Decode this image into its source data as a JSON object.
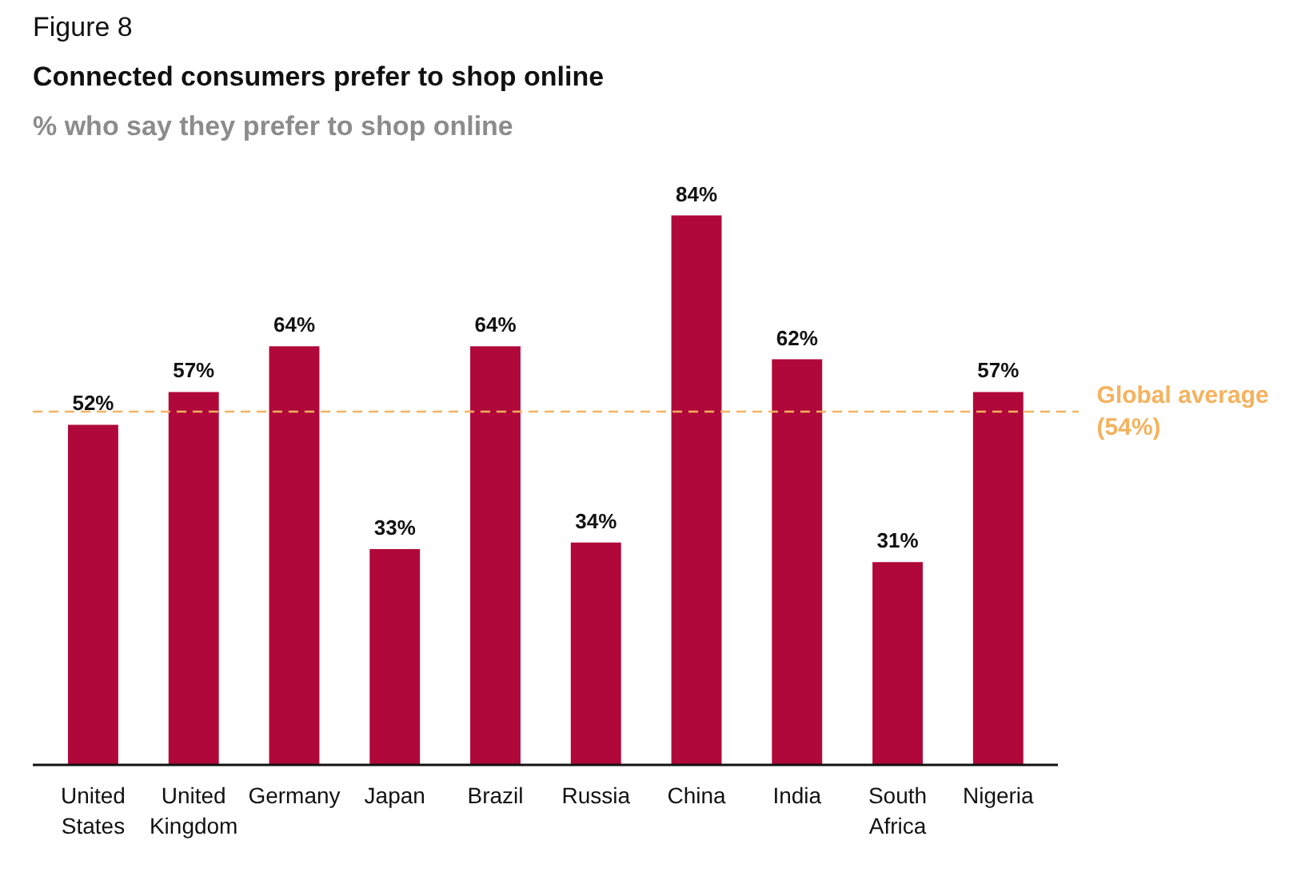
{
  "chart_data": {
    "type": "bar",
    "title": "Connected consumers prefer to shop online",
    "subtitle": "% who say they prefer to shop online",
    "annotations": [
      "Figure 8"
    ],
    "categories": [
      "United States",
      "United Kingdom",
      "Germany",
      "Japan",
      "Brazil",
      "Russia",
      "China",
      "India",
      "South Africa",
      "Nigeria"
    ],
    "values": [
      52,
      57,
      64,
      33,
      64,
      34,
      84,
      62,
      31,
      57
    ],
    "color": "#b0083a",
    "grid": false,
    "value_labels": [
      "52%",
      "57%",
      "64%",
      "33%",
      "64%",
      "34%",
      "84%",
      "62%",
      "31%",
      "57%"
    ],
    "ref_lines": [
      {
        "axis": "y",
        "value": 54,
        "label": "Global average (54%)",
        "color": "#f5b25e",
        "line_style": "dashed"
      }
    ]
  }
}
